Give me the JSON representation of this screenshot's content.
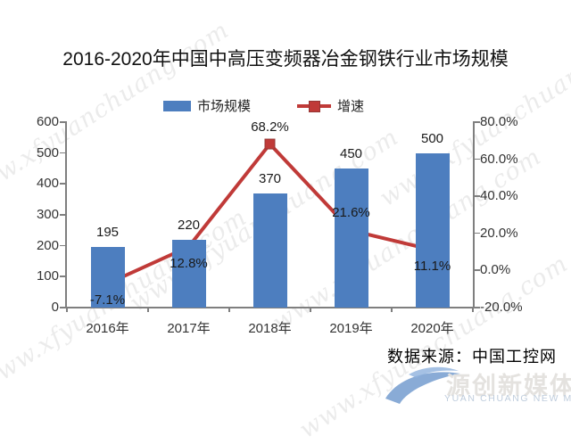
{
  "title": "2016-2020年中国中高压变频器冶金钢铁行业市场规模",
  "legend": {
    "bar_label": "市场规模",
    "line_label": "增速"
  },
  "source": "数据来源：中国工控网",
  "watermark": {
    "text": "www.xfyuanchuang.com"
  },
  "logo": {
    "cn": "源创新媒体",
    "en": "YUAN CHUANG NEW MEDIA"
  },
  "colors": {
    "bar": "#4d7ebf",
    "line": "#c03a38",
    "marker_border": "#953735",
    "axis": "#7f7f7f"
  },
  "chart_data": {
    "type": "bar",
    "subtype": "bar+line combo",
    "title": "2016-2020年中国中高压变频器冶金钢铁行业市场规模",
    "categories": [
      "2016年",
      "2017年",
      "2018年",
      "2019年",
      "2020年"
    ],
    "series": [
      {
        "name": "市场规模",
        "type": "bar",
        "axis": "left",
        "values": [
          195,
          220,
          370,
          450,
          500
        ],
        "labels": [
          "195",
          "220",
          "370",
          "450",
          "500"
        ]
      },
      {
        "name": "增速",
        "type": "line",
        "axis": "right",
        "values": [
          -7.1,
          12.8,
          68.2,
          21.6,
          11.1
        ],
        "labels": [
          "-7.1%",
          "12.8%",
          "68.2%",
          "21.6%",
          "11.1%"
        ],
        "label_side": [
          "below",
          "below",
          "above",
          "above",
          "below"
        ]
      }
    ],
    "left_axis": {
      "min": 0,
      "max": 600,
      "step": 100,
      "ticks": [
        "600",
        "500",
        "400",
        "300",
        "200",
        "100",
        "0"
      ]
    },
    "right_axis": {
      "min": -20,
      "max": 80,
      "step": 20,
      "ticks": [
        "80.0%",
        "60.0%",
        "40.0%",
        "20.0%",
        "0.0%",
        "-20.0%"
      ]
    },
    "grid": false,
    "legend_position": "top",
    "source": "数据来源：中国工控网"
  }
}
